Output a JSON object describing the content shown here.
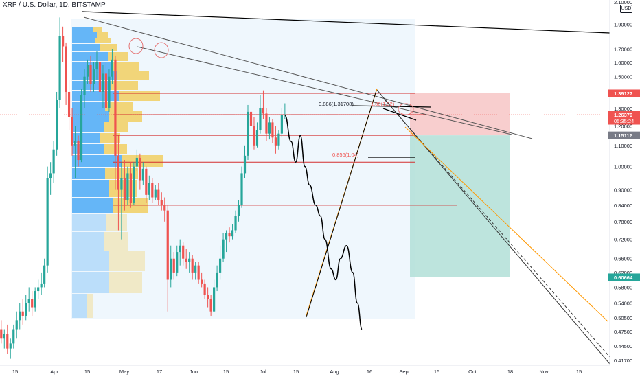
{
  "header": {
    "symbol_title": "XRP / U.S. Dollar, 1D, BITSTAMP"
  },
  "currency_button": "USD",
  "colors": {
    "up_candle": "#26a69a",
    "down_candle": "#ef5350",
    "stop_zone": "#f7c6c6",
    "target_zone": "#b2dfd7",
    "volume_profile_up": "#42a5f5",
    "volume_profile_down": "#f2c94c",
    "fib_line": "#d32f2f",
    "trend_line": "#555555",
    "fib_curve": "#ff9800",
    "projection": "#000000"
  },
  "chart_data": {
    "type": "candlestick",
    "title": "XRP / U.S. Dollar, 1D, BITSTAMP",
    "y_scale": "log",
    "ylim": [
      0.408,
      2.12
    ],
    "x_tick_labels": [
      "15",
      "Apr",
      "15",
      "May",
      "17",
      "Jun",
      "15",
      "Jul",
      "15",
      "Aug",
      "16",
      "Sep",
      "15",
      "Oct",
      "18",
      "Nov",
      "15"
    ],
    "y_tick_labels": [
      "2.10000",
      "1.90000",
      "1.70000",
      "1.60000",
      "1.50000",
      "1.40000",
      "1.30000",
      "1.20000",
      "1.10000",
      "1.00000",
      "0.90000",
      "0.84000",
      "0.78000",
      "0.72000",
      "0.66000",
      "0.62000",
      "0.58000",
      "0.54000",
      "0.50500",
      "0.47500",
      "0.44500",
      "0.41700"
    ],
    "y_ticks": [
      2.1,
      1.9,
      1.7,
      1.6,
      1.5,
      1.4,
      1.3,
      1.2,
      1.1,
      1.0,
      0.9,
      0.84,
      0.78,
      0.72,
      0.66,
      0.62,
      0.58,
      0.54,
      0.505,
      0.475,
      0.445,
      0.417
    ],
    "price_badges": [
      {
        "label": "1.39127",
        "value": 1.39127,
        "color": "#ef5350"
      },
      {
        "label": "1.26379",
        "sublabel": "05:35:24",
        "value": 1.26379,
        "color": "#ef5350"
      },
      {
        "label": "1.15112",
        "value": 1.15112,
        "color": "#787b86"
      },
      {
        "label": "0.60664",
        "value": 0.60664,
        "color": "#26a69a"
      }
    ],
    "candles": [
      {
        "d": "Mar 6",
        "o": 0.48,
        "h": 0.5,
        "l": 0.45,
        "c": 0.46
      },
      {
        "d": "Mar 8",
        "o": 0.46,
        "h": 0.48,
        "l": 0.44,
        "c": 0.47
      },
      {
        "d": "Mar 10",
        "o": 0.47,
        "h": 0.49,
        "l": 0.43,
        "c": 0.44
      },
      {
        "d": "Mar 12",
        "o": 0.44,
        "h": 0.46,
        "l": 0.42,
        "c": 0.45
      },
      {
        "d": "Mar 14",
        "o": 0.45,
        "h": 0.49,
        "l": 0.44,
        "c": 0.48
      },
      {
        "d": "Mar 16",
        "o": 0.48,
        "h": 0.52,
        "l": 0.46,
        "c": 0.5
      },
      {
        "d": "Mar 18",
        "o": 0.5,
        "h": 0.54,
        "l": 0.48,
        "c": 0.52
      },
      {
        "d": "Mar 20",
        "o": 0.52,
        "h": 0.55,
        "l": 0.49,
        "c": 0.51
      },
      {
        "d": "Mar 22",
        "o": 0.51,
        "h": 0.56,
        "l": 0.5,
        "c": 0.54
      },
      {
        "d": "Mar 24",
        "o": 0.54,
        "h": 0.58,
        "l": 0.52,
        "c": 0.55
      },
      {
        "d": "Mar 26",
        "o": 0.55,
        "h": 0.57,
        "l": 0.51,
        "c": 0.53
      },
      {
        "d": "Mar 28",
        "o": 0.53,
        "h": 0.58,
        "l": 0.52,
        "c": 0.57
      },
      {
        "d": "Mar 30",
        "o": 0.57,
        "h": 0.6,
        "l": 0.55,
        "c": 0.58
      },
      {
        "d": "Apr 1",
        "o": 0.58,
        "h": 0.62,
        "l": 0.56,
        "c": 0.59
      },
      {
        "d": "Apr 3",
        "o": 0.59,
        "h": 0.66,
        "l": 0.58,
        "c": 0.64
      },
      {
        "d": "Apr 5",
        "o": 0.64,
        "h": 1.0,
        "l": 0.62,
        "c": 0.95
      },
      {
        "d": "Apr 7",
        "o": 0.95,
        "h": 1.02,
        "l": 0.88,
        "c": 0.97
      },
      {
        "d": "Apr 9",
        "o": 0.97,
        "h": 1.12,
        "l": 0.93,
        "c": 1.08
      },
      {
        "d": "Apr 11",
        "o": 1.08,
        "h": 1.4,
        "l": 1.05,
        "c": 1.35
      },
      {
        "d": "Apr 13",
        "o": 1.35,
        "h": 1.96,
        "l": 1.3,
        "c": 1.8
      },
      {
        "d": "Apr 15",
        "o": 1.8,
        "h": 1.88,
        "l": 1.6,
        "c": 1.72
      },
      {
        "d": "Apr 17",
        "o": 1.72,
        "h": 1.75,
        "l": 1.32,
        "c": 1.4
      },
      {
        "d": "Apr 19",
        "o": 1.4,
        "h": 1.48,
        "l": 1.18,
        "c": 1.25
      },
      {
        "d": "Apr 21",
        "o": 1.25,
        "h": 1.3,
        "l": 1.05,
        "c": 1.1
      },
      {
        "d": "Apr 23",
        "o": 1.1,
        "h": 1.2,
        "l": 0.95,
        "c": 1.12
      },
      {
        "d": "Apr 25",
        "o": 1.12,
        "h": 1.15,
        "l": 1.0,
        "c": 1.03
      },
      {
        "d": "Apr 27",
        "o": 1.03,
        "h": 1.42,
        "l": 1.02,
        "c": 1.38
      },
      {
        "d": "Apr 29",
        "o": 1.38,
        "h": 1.55,
        "l": 1.3,
        "c": 1.5
      },
      {
        "d": "May 1",
        "o": 1.5,
        "h": 1.62,
        "l": 1.45,
        "c": 1.58
      },
      {
        "d": "May 3",
        "o": 1.58,
        "h": 1.65,
        "l": 1.4,
        "c": 1.45
      },
      {
        "d": "May 5",
        "o": 1.45,
        "h": 1.6,
        "l": 1.4,
        "c": 1.55
      },
      {
        "d": "May 7",
        "o": 1.55,
        "h": 1.68,
        "l": 1.48,
        "c": 1.6
      },
      {
        "d": "May 9",
        "o": 1.6,
        "h": 1.65,
        "l": 1.35,
        "c": 1.4
      },
      {
        "d": "May 11",
        "o": 1.4,
        "h": 1.58,
        "l": 1.3,
        "c": 1.52
      },
      {
        "d": "May 13",
        "o": 1.52,
        "h": 1.6,
        "l": 1.25,
        "c": 1.3
      },
      {
        "d": "May 15",
        "o": 1.3,
        "h": 1.55,
        "l": 1.28,
        "c": 1.5
      },
      {
        "d": "May 17",
        "o": 1.5,
        "h": 1.7,
        "l": 1.45,
        "c": 1.62
      },
      {
        "d": "May 19",
        "o": 1.62,
        "h": 1.65,
        "l": 0.9,
        "c": 1.05
      },
      {
        "d": "May 21",
        "o": 1.05,
        "h": 1.15,
        "l": 0.75,
        "c": 0.9
      },
      {
        "d": "May 23",
        "o": 0.9,
        "h": 1.02,
        "l": 0.72,
        "c": 0.95
      },
      {
        "d": "May 25",
        "o": 0.95,
        "h": 1.03,
        "l": 0.82,
        "c": 0.86
      },
      {
        "d": "May 27",
        "o": 0.86,
        "h": 1.0,
        "l": 0.84,
        "c": 0.97
      },
      {
        "d": "May 29",
        "o": 0.97,
        "h": 1.02,
        "l": 0.83,
        "c": 0.85
      },
      {
        "d": "May 31",
        "o": 0.85,
        "h": 1.02,
        "l": 0.84,
        "c": 1.0
      },
      {
        "d": "Jun 2",
        "o": 1.0,
        "h": 1.08,
        "l": 0.98,
        "c": 1.04
      },
      {
        "d": "Jun 4",
        "o": 1.04,
        "h": 1.06,
        "l": 0.9,
        "c": 0.94
      },
      {
        "d": "Jun 6",
        "o": 0.94,
        "h": 1.02,
        "l": 0.92,
        "c": 0.99
      },
      {
        "d": "Jun 8",
        "o": 0.99,
        "h": 1.0,
        "l": 0.85,
        "c": 0.88
      },
      {
        "d": "Jun 10",
        "o": 0.88,
        "h": 0.96,
        "l": 0.86,
        "c": 0.93
      },
      {
        "d": "Jun 12",
        "o": 0.93,
        "h": 0.95,
        "l": 0.85,
        "c": 0.87
      },
      {
        "d": "Jun 14",
        "o": 0.87,
        "h": 0.92,
        "l": 0.86,
        "c": 0.9
      },
      {
        "d": "Jun 16",
        "o": 0.9,
        "h": 0.93,
        "l": 0.84,
        "c": 0.86
      },
      {
        "d": "Jun 18",
        "o": 0.86,
        "h": 0.89,
        "l": 0.82,
        "c": 0.84
      },
      {
        "d": "Jun 20",
        "o": 0.84,
        "h": 0.87,
        "l": 0.78,
        "c": 0.82
      },
      {
        "d": "Jun 22",
        "o": 0.82,
        "h": 0.84,
        "l": 0.52,
        "c": 0.6
      },
      {
        "d": "Jun 24",
        "o": 0.6,
        "h": 0.7,
        "l": 0.58,
        "c": 0.66
      },
      {
        "d": "Jun 26",
        "o": 0.66,
        "h": 0.68,
        "l": 0.6,
        "c": 0.62
      },
      {
        "d": "Jun 28",
        "o": 0.62,
        "h": 0.7,
        "l": 0.61,
        "c": 0.68
      },
      {
        "d": "Jun 30",
        "o": 0.68,
        "h": 0.72,
        "l": 0.64,
        "c": 0.7
      },
      {
        "d": "Jul 2",
        "o": 0.7,
        "h": 0.71,
        "l": 0.64,
        "c": 0.66
      },
      {
        "d": "Jul 4",
        "o": 0.66,
        "h": 0.69,
        "l": 0.63,
        "c": 0.65
      },
      {
        "d": "Jul 6",
        "o": 0.65,
        "h": 0.68,
        "l": 0.62,
        "c": 0.66
      },
      {
        "d": "Jul 8",
        "o": 0.66,
        "h": 0.67,
        "l": 0.6,
        "c": 0.62
      },
      {
        "d": "Jul 10",
        "o": 0.62,
        "h": 0.65,
        "l": 0.6,
        "c": 0.64
      },
      {
        "d": "Jul 12",
        "o": 0.64,
        "h": 0.65,
        "l": 0.59,
        "c": 0.6
      },
      {
        "d": "Jul 14",
        "o": 0.6,
        "h": 0.62,
        "l": 0.58,
        "c": 0.59
      },
      {
        "d": "Jul 16",
        "o": 0.59,
        "h": 0.6,
        "l": 0.55,
        "c": 0.56
      },
      {
        "d": "Jul 18",
        "o": 0.56,
        "h": 0.58,
        "l": 0.53,
        "c": 0.55
      },
      {
        "d": "Jul 20",
        "o": 0.55,
        "h": 0.56,
        "l": 0.51,
        "c": 0.52
      },
      {
        "d": "Jul 22",
        "o": 0.52,
        "h": 0.6,
        "l": 0.52,
        "c": 0.58
      },
      {
        "d": "Jul 24",
        "o": 0.58,
        "h": 0.64,
        "l": 0.57,
        "c": 0.62
      },
      {
        "d": "Jul 26",
        "o": 0.62,
        "h": 0.7,
        "l": 0.6,
        "c": 0.66
      },
      {
        "d": "Jul 28",
        "o": 0.66,
        "h": 0.74,
        "l": 0.65,
        "c": 0.72
      },
      {
        "d": "Jul 30",
        "o": 0.72,
        "h": 0.75,
        "l": 0.68,
        "c": 0.74
      },
      {
        "d": "Aug 1",
        "o": 0.74,
        "h": 0.76,
        "l": 0.71,
        "c": 0.73
      },
      {
        "d": "Aug 3",
        "o": 0.73,
        "h": 0.77,
        "l": 0.72,
        "c": 0.75
      },
      {
        "d": "Aug 5",
        "o": 0.75,
        "h": 0.82,
        "l": 0.74,
        "c": 0.8
      },
      {
        "d": "Aug 7",
        "o": 0.8,
        "h": 0.86,
        "l": 0.78,
        "c": 0.84
      },
      {
        "d": "Aug 9",
        "o": 0.84,
        "h": 1.0,
        "l": 0.83,
        "c": 0.97
      },
      {
        "d": "Aug 11",
        "o": 0.97,
        "h": 1.1,
        "l": 0.95,
        "c": 1.05
      },
      {
        "d": "Aug 13",
        "o": 1.05,
        "h": 1.32,
        "l": 1.03,
        "c": 1.28
      },
      {
        "d": "Aug 15",
        "o": 1.28,
        "h": 1.33,
        "l": 1.12,
        "c": 1.2
      },
      {
        "d": "Aug 17",
        "o": 1.2,
        "h": 1.25,
        "l": 1.08,
        "c": 1.1
      },
      {
        "d": "Aug 19",
        "o": 1.1,
        "h": 1.22,
        "l": 1.09,
        "c": 1.18
      },
      {
        "d": "Aug 21",
        "o": 1.18,
        "h": 1.38,
        "l": 1.16,
        "c": 1.3
      },
      {
        "d": "Aug 23",
        "o": 1.3,
        "h": 1.41,
        "l": 1.24,
        "c": 1.27
      },
      {
        "d": "Aug 25",
        "o": 1.27,
        "h": 1.3,
        "l": 1.12,
        "c": 1.16
      },
      {
        "d": "Aug 27",
        "o": 1.16,
        "h": 1.25,
        "l": 1.13,
        "c": 1.22
      },
      {
        "d": "Aug 29",
        "o": 1.22,
        "h": 1.24,
        "l": 1.11,
        "c": 1.14
      },
      {
        "d": "Aug 31",
        "o": 1.14,
        "h": 1.2,
        "l": 1.06,
        "c": 1.1
      },
      {
        "d": "Sep 2",
        "o": 1.1,
        "h": 1.18,
        "l": 1.08,
        "c": 1.16
      },
      {
        "d": "Sep 4",
        "o": 1.16,
        "h": 1.3,
        "l": 1.14,
        "c": 1.26
      },
      {
        "d": "Sep 6",
        "o": 1.26,
        "h": 1.33,
        "l": 1.24,
        "c": 1.264
      }
    ],
    "horizontal_levels": [
      1.39127,
      1.26379,
      1.15112,
      1.02,
      0.84
    ],
    "annotations": [
      "0.886(1.31708)",
      "1.00(1.32)",
      "0.856(1.04)"
    ],
    "trade_box": {
      "entry": 1.15112,
      "stop": 1.39127,
      "target": 0.60664
    },
    "projection_path": [
      {
        "d": "Sep 6",
        "v": 1.26
      },
      {
        "d": "Sep 10",
        "v": 1.12
      },
      {
        "d": "Sep 13",
        "v": 1.02
      },
      {
        "d": "Sep 16",
        "v": 1.15
      },
      {
        "d": "Sep 19",
        "v": 1.0
      },
      {
        "d": "Sep 22",
        "v": 0.92
      },
      {
        "d": "Sep 26",
        "v": 0.84
      },
      {
        "d": "Sep 29",
        "v": 0.8
      },
      {
        "d": "Oct 2",
        "v": 0.72
      },
      {
        "d": "Oct 6",
        "v": 0.63
      },
      {
        "d": "Oct 9",
        "v": 0.6
      },
      {
        "d": "Oct 12",
        "v": 0.66
      },
      {
        "d": "Oct 16",
        "v": 0.7
      },
      {
        "d": "Oct 20",
        "v": 0.62
      },
      {
        "d": "Oct 23",
        "v": 0.54
      },
      {
        "d": "Oct 26",
        "v": 0.48
      }
    ]
  }
}
